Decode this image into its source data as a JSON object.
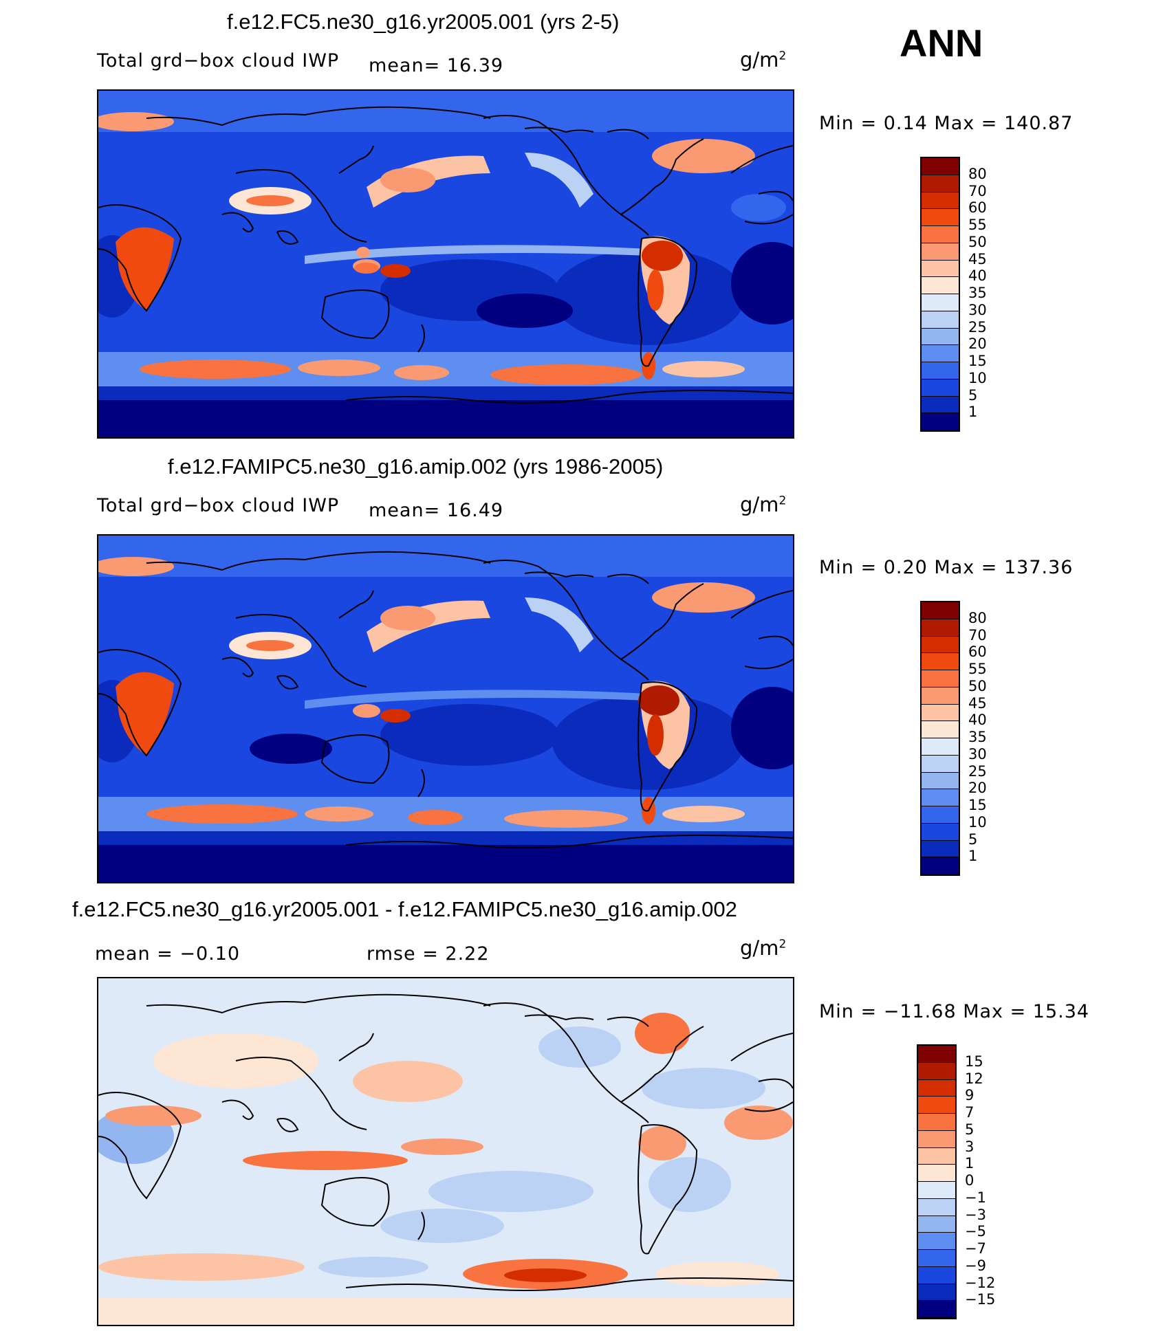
{
  "season": "ANN",
  "panels": [
    {
      "title": "f.e12.FC5.ne30_g16.yr2005.001 (yrs 2-5)",
      "variable": "Total grd−box cloud IWP",
      "stat": "mean=   16.39",
      "units": "g/m",
      "units_sup": "2",
      "minmax": "Min =    0.14 Max =  140.87",
      "colorbar_labels": [
        "80",
        "70",
        "60",
        "55",
        "50",
        "45",
        "40",
        "35",
        "30",
        "25",
        "20",
        "15",
        "10",
        "5",
        "1"
      ],
      "palette": [
        "#7f0000",
        "#b01a00",
        "#d42d00",
        "#f04a10",
        "#f8733f",
        "#fa9a72",
        "#fcc4a5",
        "#fde6d4",
        "#dfeaf8",
        "#bcd2f4",
        "#93b6f1",
        "#5e8ff0",
        "#3366ec",
        "#1a47e0",
        "#0b2bbd",
        "#000080"
      ]
    },
    {
      "title": "f.e12.FAMIPC5.ne30_g16.amip.002 (yrs 1986-2005)",
      "variable": "Total grd−box cloud IWP",
      "stat": "mean=   16.49",
      "units": "g/m",
      "units_sup": "2",
      "minmax": "Min =    0.20 Max =  137.36",
      "colorbar_labels": [
        "80",
        "70",
        "60",
        "55",
        "50",
        "45",
        "40",
        "35",
        "30",
        "25",
        "20",
        "15",
        "10",
        "5",
        "1"
      ],
      "palette": [
        "#7f0000",
        "#b01a00",
        "#d42d00",
        "#f04a10",
        "#f8733f",
        "#fa9a72",
        "#fcc4a5",
        "#fde6d4",
        "#dfeaf8",
        "#bcd2f4",
        "#93b6f1",
        "#5e8ff0",
        "#3366ec",
        "#1a47e0",
        "#0b2bbd",
        "#000080"
      ]
    },
    {
      "title": "f.e12.FC5.ne30_g16.yr2005.001 - f.e12.FAMIPC5.ne30_g16.amip.002",
      "stat_mean": "mean =   −0.10",
      "stat_rmse": "rmse =    2.22",
      "units": "g/m",
      "units_sup": "2",
      "minmax": "Min = −11.68 Max =   15.34",
      "colorbar_labels": [
        "15",
        "12",
        "9",
        "7",
        "5",
        "3",
        "1",
        "0",
        "−1",
        "−3",
        "−5",
        "−7",
        "−9",
        "−12",
        "−15"
      ],
      "palette": [
        "#7f0000",
        "#b01a00",
        "#d42d00",
        "#f04a10",
        "#f8733f",
        "#fa9a72",
        "#fcc4a5",
        "#fde6d4",
        "#dfeaf8",
        "#bcd2f4",
        "#93b6f1",
        "#5e8ff0",
        "#3366ec",
        "#1a47e0",
        "#0b2bbd",
        "#000080"
      ]
    }
  ]
}
